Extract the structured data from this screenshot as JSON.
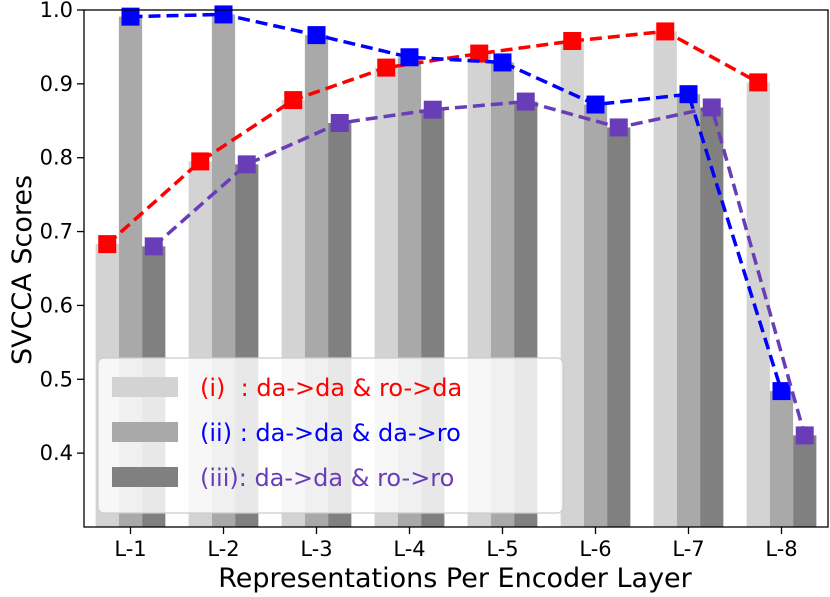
{
  "chart_data": {
    "type": "bar",
    "title": "",
    "xlabel": "Representations Per Encoder Layer",
    "ylabel": "SVCCA Scores",
    "ylim": [
      0.3,
      1.0
    ],
    "yticks": [
      "0.4",
      "0.5",
      "0.6",
      "0.7",
      "0.8",
      "0.9",
      "1.0"
    ],
    "categories": [
      "L-1",
      "L-2",
      "L-3",
      "L-4",
      "L-5",
      "L-6",
      "L-7",
      "L-8"
    ],
    "legend_position": "lower-left",
    "grid": false,
    "series": [
      {
        "name": "(i)  : da->da & ro->da",
        "bar_color": "#d3d3d3",
        "line_color": "#ff0000",
        "values": [
          0.683,
          0.795,
          0.878,
          0.922,
          0.941,
          0.958,
          0.971,
          0.902
        ]
      },
      {
        "name": "(ii) : da->da & da->ro",
        "bar_color": "#a9a9a9",
        "line_color": "#0000ff",
        "values": [
          0.991,
          0.994,
          0.966,
          0.936,
          0.929,
          0.872,
          0.886,
          0.484
        ]
      },
      {
        "name": "(iii): da->da & ro->ro",
        "bar_color": "#808080",
        "line_color": "#6a3db8",
        "values": [
          0.68,
          0.791,
          0.847,
          0.865,
          0.876,
          0.841,
          0.868,
          0.424
        ]
      }
    ]
  }
}
